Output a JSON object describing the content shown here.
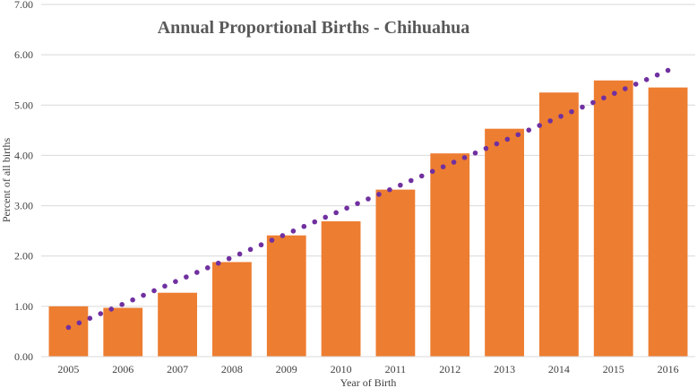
{
  "chart_data": {
    "type": "bar",
    "title": "Annual Proportional Births - Chihuahua",
    "xlabel": "Year of Birth",
    "ylabel": "Percent of all births",
    "ylim": [
      0,
      7
    ],
    "y_ticks": [
      "0.00",
      "1.00",
      "2.00",
      "3.00",
      "4.00",
      "5.00",
      "6.00",
      "7.00"
    ],
    "categories": [
      "2005",
      "2006",
      "2007",
      "2008",
      "2009",
      "2010",
      "2011",
      "2012",
      "2013",
      "2014",
      "2015",
      "2016"
    ],
    "series": [
      {
        "name": "Percent of all births",
        "type": "bar",
        "color": "#ED7D31",
        "values": [
          1.0,
          0.97,
          1.27,
          1.88,
          2.41,
          2.69,
          3.32,
          4.04,
          4.53,
          5.25,
          5.49,
          5.35
        ]
      }
    ],
    "trendline": {
      "type": "linear",
      "style": "dotted",
      "color": "#7030A0",
      "start": 0.58,
      "end": 5.69
    },
    "grid": true
  }
}
